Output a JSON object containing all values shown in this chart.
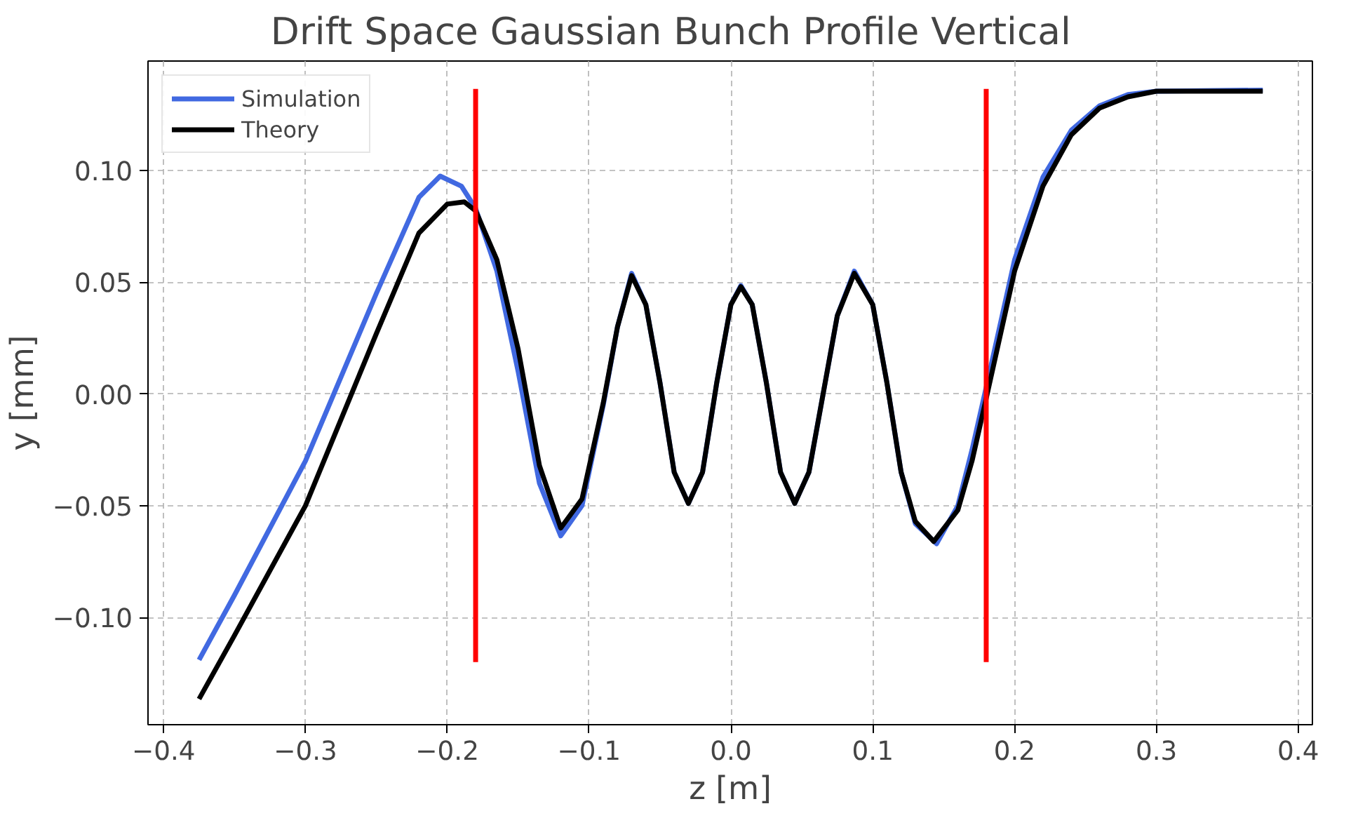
{
  "chart_data": {
    "type": "line",
    "title": "Drift Space      Gaussian Bunch Profile      Vertical",
    "xlabel": "z [m]",
    "ylabel": "y [mm]",
    "xlim": [
      -0.411,
      0.41
    ],
    "ylim": [
      -0.148,
      0.149
    ],
    "xticks": [
      {
        "value": -0.4,
        "label": "−0.4"
      },
      {
        "value": -0.3,
        "label": "−0.3"
      },
      {
        "value": -0.2,
        "label": "−0.2"
      },
      {
        "value": -0.1,
        "label": "−0.1"
      },
      {
        "value": 0.0,
        "label": "0.0"
      },
      {
        "value": 0.1,
        "label": "0.1"
      },
      {
        "value": 0.2,
        "label": "0.2"
      },
      {
        "value": 0.3,
        "label": "0.3"
      },
      {
        "value": 0.4,
        "label": "0.4"
      }
    ],
    "yticks": [
      {
        "value": -0.1,
        "label": "−0.10"
      },
      {
        "value": -0.05,
        "label": "−0.05"
      },
      {
        "value": 0.0,
        "label": "0.00"
      },
      {
        "value": 0.05,
        "label": "0.05"
      },
      {
        "value": 0.1,
        "label": "0.10"
      }
    ],
    "grid": true,
    "legend": "top left",
    "line_style": "solid",
    "series": [
      {
        "name": "Simulation",
        "color": "#4169e1",
        "x": [
          -0.375,
          -0.35,
          -0.3,
          -0.25,
          -0.22,
          -0.205,
          -0.19,
          -0.18,
          -0.165,
          -0.15,
          -0.135,
          -0.12,
          -0.105,
          -0.09,
          -0.08,
          -0.07,
          -0.06,
          -0.05,
          -0.04,
          -0.03,
          -0.02,
          -0.01,
          0.0,
          0.007,
          0.015,
          0.025,
          0.035,
          0.045,
          0.055,
          0.065,
          0.075,
          0.087,
          0.1,
          0.11,
          0.12,
          0.13,
          0.145,
          0.16,
          0.17,
          0.18,
          0.2,
          0.22,
          0.24,
          0.26,
          0.28,
          0.3,
          0.375
        ],
        "values": [
          -0.119,
          -0.09,
          -0.03,
          0.045,
          0.088,
          0.0975,
          0.093,
          0.083,
          0.055,
          0.01,
          -0.04,
          -0.0635,
          -0.05,
          -0.005,
          0.03,
          0.054,
          0.04,
          0.005,
          -0.035,
          -0.049,
          -0.035,
          0.005,
          0.04,
          0.0485,
          0.04,
          0.005,
          -0.035,
          -0.049,
          -0.035,
          0.0,
          0.035,
          0.055,
          0.04,
          0.005,
          -0.035,
          -0.058,
          -0.067,
          -0.05,
          -0.025,
          0.003,
          0.06,
          0.097,
          0.118,
          0.129,
          0.134,
          0.1355,
          0.136
        ]
      },
      {
        "name": "Theory",
        "color": "#000000",
        "x": [
          -0.375,
          -0.35,
          -0.3,
          -0.25,
          -0.22,
          -0.2,
          -0.188,
          -0.18,
          -0.165,
          -0.15,
          -0.135,
          -0.12,
          -0.105,
          -0.09,
          -0.08,
          -0.07,
          -0.06,
          -0.05,
          -0.04,
          -0.03,
          -0.02,
          -0.01,
          0.0,
          0.007,
          0.015,
          0.025,
          0.035,
          0.045,
          0.055,
          0.065,
          0.075,
          0.087,
          0.1,
          0.11,
          0.12,
          0.13,
          0.143,
          0.16,
          0.17,
          0.18,
          0.2,
          0.22,
          0.24,
          0.26,
          0.28,
          0.3,
          0.375
        ],
        "values": [
          -0.1365,
          -0.108,
          -0.05,
          0.027,
          0.072,
          0.085,
          0.086,
          0.082,
          0.06,
          0.02,
          -0.032,
          -0.06,
          -0.047,
          -0.004,
          0.03,
          0.053,
          0.04,
          0.005,
          -0.035,
          -0.049,
          -0.035,
          0.005,
          0.04,
          0.048,
          0.04,
          0.005,
          -0.035,
          -0.049,
          -0.035,
          0.0,
          0.035,
          0.054,
          0.04,
          0.005,
          -0.035,
          -0.057,
          -0.066,
          -0.052,
          -0.03,
          -0.002,
          0.055,
          0.093,
          0.116,
          0.128,
          0.133,
          0.1355,
          0.1355
        ]
      },
      {
        "color": "#ff0000",
        "x": [
          -0.18,
          -0.18
        ],
        "values": [
          -0.12,
          0.1365
        ]
      },
      {
        "color": "#ff0000",
        "x": [
          0.18,
          0.18
        ],
        "values": [
          -0.12,
          0.1365
        ]
      }
    ]
  }
}
